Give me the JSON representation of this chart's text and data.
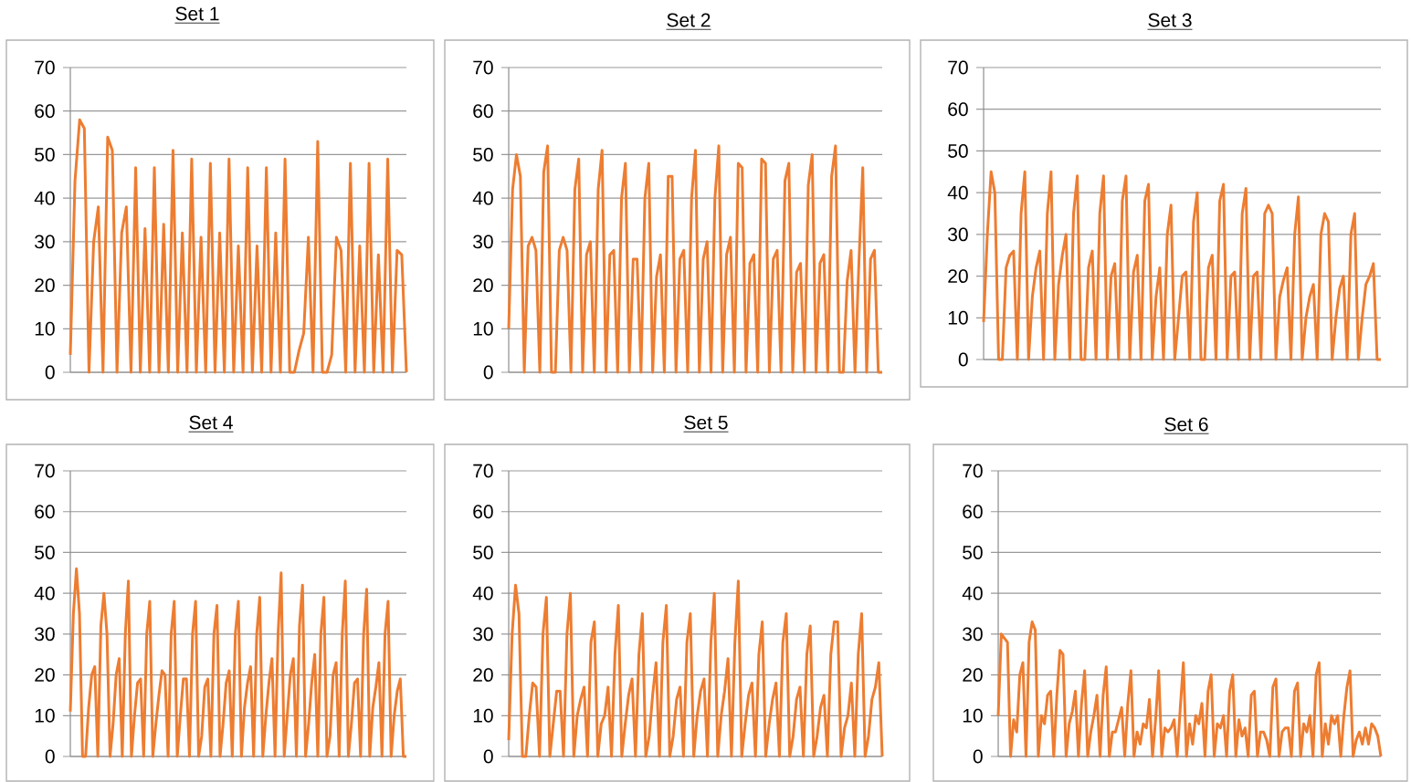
{
  "chart_data": [
    {
      "type": "line",
      "title": "Set 1",
      "color": "#ed7d31",
      "marker": "none",
      "grid": "y",
      "tick_labels": "y",
      "ylim": [
        0,
        70
      ],
      "yticks": [
        0,
        10,
        20,
        30,
        40,
        50,
        60,
        70
      ],
      "categories": [
        null,
        null,
        null,
        null,
        null,
        null,
        null,
        null,
        null,
        null,
        null,
        null,
        null,
        null,
        null,
        null,
        null,
        null,
        null,
        null,
        null,
        null,
        null,
        null,
        null,
        null,
        null,
        null,
        null,
        null,
        null,
        null,
        null,
        null,
        null,
        null,
        null,
        null,
        null,
        null,
        null,
        null,
        null,
        null,
        null,
        null,
        null,
        null,
        null,
        null,
        null,
        null,
        null,
        null,
        null,
        null,
        null,
        null,
        null,
        null,
        null,
        null,
        null,
        null,
        null,
        null,
        null,
        null,
        null,
        null,
        null,
        null,
        null
      ],
      "values": [
        4,
        44,
        58,
        56,
        0,
        30,
        38,
        0,
        54,
        51,
        0,
        32,
        38,
        0,
        47,
        0,
        33,
        0,
        47,
        0,
        34,
        0,
        51,
        0,
        32,
        0,
        49,
        0,
        31,
        0,
        48,
        0,
        32,
        0,
        49,
        0,
        29,
        0,
        47,
        0,
        29,
        0,
        47,
        0,
        32,
        0,
        49,
        0,
        0,
        5,
        9,
        31,
        0,
        53,
        0,
        0,
        4,
        31,
        28,
        0,
        48,
        0,
        29,
        0,
        48,
        0,
        27,
        0,
        49,
        0,
        28,
        27,
        0
      ]
    },
    {
      "type": "line",
      "title": "Set 2",
      "color": "#ed7d31",
      "marker": "none",
      "grid": "y",
      "tick_labels": "y",
      "ylim": [
        0,
        70
      ],
      "yticks": [
        0,
        10,
        20,
        30,
        40,
        50,
        60,
        70
      ],
      "categories": [
        null,
        null,
        null,
        null,
        null,
        null,
        null,
        null,
        null,
        null,
        null,
        null,
        null,
        null,
        null,
        null,
        null,
        null,
        null,
        null,
        null,
        null,
        null,
        null,
        null,
        null,
        null,
        null,
        null,
        null,
        null,
        null,
        null,
        null,
        null,
        null,
        null,
        null,
        null,
        null,
        null,
        null,
        null,
        null,
        null,
        null,
        null,
        null,
        null,
        null,
        null,
        null,
        null,
        null,
        null,
        null,
        null,
        null,
        null,
        null,
        null,
        null,
        null,
        null,
        null,
        null,
        null,
        null,
        null,
        null,
        null,
        null,
        null,
        null,
        null,
        null,
        null,
        null,
        null,
        null,
        null,
        null,
        null,
        null,
        null,
        null,
        null,
        null,
        null,
        null,
        null,
        null,
        null,
        null,
        null,
        null,
        null
      ],
      "values": [
        10,
        42,
        50,
        45,
        0,
        29,
        31,
        28,
        0,
        46,
        52,
        0,
        0,
        28,
        31,
        28,
        0,
        42,
        49,
        0,
        27,
        30,
        0,
        42,
        51,
        0,
        27,
        28,
        0,
        40,
        48,
        0,
        26,
        26,
        0,
        40,
        48,
        0,
        22,
        27,
        0,
        45,
        45,
        0,
        26,
        28,
        0,
        40,
        51,
        0,
        26,
        30,
        0,
        40,
        52,
        0,
        27,
        31,
        0,
        48,
        47,
        0,
        25,
        27,
        0,
        49,
        48,
        0,
        26,
        28,
        0,
        44,
        48,
        0,
        23,
        25,
        0,
        43,
        50,
        0,
        25,
        27,
        0,
        45,
        52,
        0,
        0,
        21,
        28,
        0,
        25,
        47,
        0,
        26,
        28,
        0,
        0
      ]
    },
    {
      "type": "line",
      "title": "Set 3",
      "color": "#ed7d31",
      "marker": "none",
      "grid": "y",
      "tick_labels": "y",
      "ylim": [
        0,
        70
      ],
      "yticks": [
        0,
        10,
        20,
        30,
        40,
        50,
        60,
        70
      ],
      "categories": [
        null,
        null,
        null,
        null,
        null,
        null,
        null,
        null,
        null,
        null,
        null,
        null,
        null,
        null,
        null,
        null,
        null,
        null,
        null,
        null,
        null,
        null,
        null,
        null,
        null,
        null,
        null,
        null,
        null,
        null,
        null,
        null,
        null,
        null,
        null,
        null,
        null,
        null,
        null,
        null,
        null,
        null,
        null,
        null,
        null,
        null,
        null,
        null,
        null,
        null,
        null,
        null,
        null,
        null,
        null,
        null,
        null,
        null,
        null,
        null,
        null,
        null,
        null,
        null,
        null,
        null,
        null,
        null,
        null,
        null,
        null,
        null,
        null,
        null,
        null,
        null,
        null,
        null,
        null,
        null,
        null,
        null,
        null,
        null,
        null,
        null,
        null,
        null,
        null,
        null,
        null,
        null,
        null,
        null,
        null,
        null,
        null,
        null,
        null,
        null,
        null,
        null,
        null,
        null,
        null,
        null,
        null
      ],
      "values": [
        9,
        30,
        45,
        40,
        0,
        0,
        22,
        25,
        26,
        0,
        35,
        45,
        0,
        15,
        22,
        26,
        0,
        35,
        45,
        0,
        18,
        25,
        30,
        0,
        35,
        44,
        0,
        0,
        22,
        26,
        0,
        35,
        44,
        0,
        20,
        23,
        0,
        38,
        44,
        0,
        21,
        25,
        0,
        38,
        42,
        0,
        15,
        22,
        0,
        30,
        37,
        0,
        10,
        20,
        21,
        0,
        33,
        40,
        0,
        0,
        22,
        25,
        0,
        38,
        42,
        0,
        20,
        21,
        0,
        35,
        41,
        0,
        20,
        21,
        0,
        35,
        37,
        35,
        0,
        15,
        19,
        22,
        0,
        30,
        39,
        0,
        10,
        15,
        18,
        0,
        30,
        35,
        33,
        0,
        10,
        17,
        20,
        0,
        30,
        35,
        0,
        10,
        18,
        20,
        23,
        0,
        0
      ]
    },
    {
      "type": "line",
      "title": "Set 4",
      "color": "#ed7d31",
      "marker": "none",
      "grid": "y",
      "tick_labels": "y",
      "ylim": [
        0,
        70
      ],
      "yticks": [
        0,
        10,
        20,
        30,
        40,
        50,
        60,
        70
      ],
      "categories": [
        null,
        null,
        null,
        null,
        null,
        null,
        null,
        null,
        null,
        null,
        null,
        null,
        null,
        null,
        null,
        null,
        null,
        null,
        null,
        null,
        null,
        null,
        null,
        null,
        null,
        null,
        null,
        null,
        null,
        null,
        null,
        null,
        null,
        null,
        null,
        null,
        null,
        null,
        null,
        null,
        null,
        null,
        null,
        null,
        null,
        null,
        null,
        null,
        null,
        null,
        null,
        null,
        null,
        null,
        null,
        null,
        null,
        null,
        null,
        null,
        null,
        null,
        null,
        null,
        null,
        null,
        null,
        null,
        null,
        null,
        null,
        null,
        null,
        null,
        null,
        null,
        null,
        null,
        null,
        null,
        null,
        null,
        null,
        null,
        null,
        null,
        null,
        null,
        null,
        null,
        null,
        null,
        null,
        null,
        null,
        null,
        null,
        null,
        null,
        null,
        null,
        null,
        null,
        null,
        null,
        null,
        null,
        null,
        null,
        null,
        null
      ],
      "values": [
        11,
        35,
        46,
        35,
        0,
        0,
        12,
        20,
        22,
        0,
        32,
        40,
        30,
        0,
        8,
        20,
        24,
        0,
        30,
        43,
        0,
        10,
        18,
        19,
        0,
        30,
        38,
        0,
        8,
        15,
        21,
        20,
        0,
        30,
        38,
        0,
        10,
        19,
        19,
        0,
        30,
        38,
        0,
        5,
        17,
        19,
        0,
        30,
        37,
        0,
        8,
        18,
        21,
        0,
        30,
        38,
        0,
        12,
        18,
        22,
        0,
        30,
        39,
        0,
        10,
        18,
        24,
        0,
        30,
        45,
        0,
        10,
        20,
        24,
        0,
        32,
        42,
        0,
        8,
        18,
        25,
        0,
        30,
        39,
        0,
        5,
        20,
        23,
        0,
        30,
        43,
        0,
        8,
        18,
        19,
        0,
        30,
        41,
        0,
        12,
        17,
        23,
        0,
        30,
        38,
        0,
        10,
        16,
        19,
        0,
        0
      ]
    },
    {
      "type": "line",
      "title": "Set 5",
      "color": "#ed7d31",
      "marker": "none",
      "grid": "y",
      "tick_labels": "y",
      "ylim": [
        0,
        70
      ],
      "yticks": [
        0,
        10,
        20,
        30,
        40,
        50,
        60,
        70
      ],
      "categories": [
        null,
        null,
        null,
        null,
        null,
        null,
        null,
        null,
        null,
        null,
        null,
        null,
        null,
        null,
        null,
        null,
        null,
        null,
        null,
        null,
        null,
        null,
        null,
        null,
        null,
        null,
        null,
        null,
        null,
        null,
        null,
        null,
        null,
        null,
        null,
        null,
        null,
        null,
        null,
        null,
        null,
        null,
        null,
        null,
        null,
        null,
        null,
        null,
        null,
        null,
        null,
        null,
        null,
        null,
        null,
        null,
        null,
        null,
        null,
        null,
        null,
        null,
        null,
        null,
        null,
        null,
        null,
        null,
        null,
        null,
        null,
        null,
        null,
        null,
        null,
        null,
        null,
        null,
        null,
        null,
        null,
        null,
        null,
        null,
        null,
        null,
        null,
        null,
        null,
        null,
        null,
        null,
        null,
        null,
        null,
        null,
        null,
        null,
        null,
        null,
        null,
        null,
        null,
        null,
        null,
        null,
        null,
        null,
        null,
        null
      ],
      "values": [
        4,
        30,
        42,
        35,
        0,
        0,
        10,
        18,
        17,
        0,
        30,
        39,
        0,
        8,
        16,
        16,
        0,
        30,
        40,
        0,
        10,
        14,
        17,
        0,
        28,
        33,
        0,
        8,
        10,
        17,
        0,
        25,
        37,
        0,
        8,
        15,
        19,
        0,
        25,
        35,
        0,
        5,
        15,
        23,
        0,
        28,
        37,
        0,
        5,
        14,
        17,
        0,
        28,
        35,
        0,
        10,
        16,
        19,
        0,
        28,
        40,
        0,
        10,
        16,
        24,
        0,
        28,
        43,
        0,
        8,
        15,
        18,
        0,
        25,
        33,
        0,
        8,
        14,
        18,
        0,
        28,
        35,
        0,
        5,
        14,
        17,
        0,
        25,
        32,
        0,
        5,
        12,
        15,
        0,
        25,
        33,
        33,
        0,
        7,
        10,
        18,
        0,
        25,
        35,
        0,
        5,
        14,
        17,
        23,
        0
      ]
    },
    {
      "type": "line",
      "title": "Set 6",
      "color": "#ed7d31",
      "marker": "none",
      "grid": "y",
      "tick_labels": "y",
      "ylim": [
        0,
        70
      ],
      "yticks": [
        0,
        10,
        20,
        30,
        40,
        50,
        60,
        70
      ],
      "categories": [
        null,
        null,
        null,
        null,
        null,
        null,
        null,
        null,
        null,
        null,
        null,
        null,
        null,
        null,
        null,
        null,
        null,
        null,
        null,
        null,
        null,
        null,
        null,
        null,
        null,
        null,
        null,
        null,
        null,
        null,
        null,
        null,
        null,
        null,
        null,
        null,
        null,
        null,
        null,
        null,
        null,
        null,
        null,
        null,
        null,
        null,
        null,
        null,
        null,
        null,
        null,
        null,
        null,
        null,
        null,
        null,
        null,
        null,
        null,
        null,
        null,
        null,
        null,
        null,
        null,
        null,
        null,
        null,
        null,
        null,
        null,
        null,
        null,
        null,
        null,
        null,
        null,
        null,
        null,
        null,
        null,
        null,
        null,
        null,
        null,
        null,
        null,
        null,
        null,
        null,
        null,
        null,
        null,
        null,
        null,
        null,
        null,
        null,
        null,
        null,
        null,
        null,
        null,
        null,
        null,
        null,
        null,
        null,
        null,
        null,
        null,
        null,
        null,
        null,
        null,
        null,
        null,
        null,
        null,
        null,
        null,
        null,
        null,
        null,
        null
      ],
      "values": [
        10,
        30,
        29,
        28,
        0,
        9,
        6,
        20,
        23,
        0,
        28,
        33,
        31,
        0,
        10,
        8,
        15,
        16,
        0,
        15,
        26,
        25,
        0,
        8,
        11,
        16,
        0,
        13,
        21,
        0,
        6,
        10,
        15,
        0,
        15,
        22,
        0,
        6,
        6,
        9,
        12,
        0,
        13,
        21,
        0,
        6,
        3,
        8,
        7,
        14,
        0,
        9,
        21,
        0,
        7,
        6,
        7,
        9,
        0,
        12,
        23,
        0,
        8,
        3,
        10,
        8,
        13,
        0,
        16,
        20,
        0,
        8,
        7,
        10,
        0,
        16,
        20,
        0,
        9,
        5,
        7,
        0,
        15,
        16,
        0,
        6,
        6,
        4,
        0,
        17,
        19,
        0,
        6,
        7,
        7,
        0,
        16,
        18,
        0,
        8,
        6,
        10,
        0,
        20,
        23,
        0,
        8,
        3,
        10,
        8,
        10,
        0,
        10,
        17,
        21,
        0,
        4,
        6,
        3,
        7,
        3,
        8,
        7,
        5,
        0
      ]
    }
  ]
}
